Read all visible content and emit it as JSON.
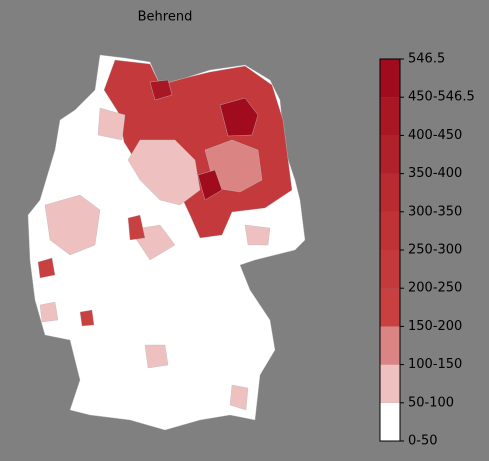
{
  "title": "Behrend",
  "legend": {
    "labels": [
      "0-50",
      "50-100",
      "100-150",
      "150-200",
      "200-250",
      "250-300",
      "300-350",
      "350-400",
      "400-450",
      "450-546.5",
      "546.5"
    ],
    "colors": [
      "#ffffff",
      "#efc0c0",
      "#db8484",
      "#c94040",
      "#c43a3c",
      "#bf3236",
      "#b92a31",
      "#b1212b",
      "#a91725",
      "#a00c1e"
    ]
  }
}
